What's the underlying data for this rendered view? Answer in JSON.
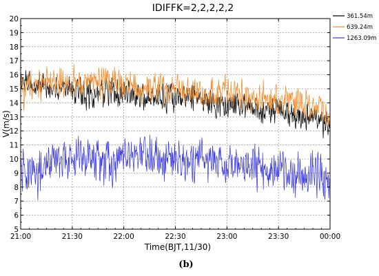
{
  "chart_data": {
    "type": "line",
    "title": "IDIFFK=2,2,2,2,2",
    "xlabel": "Time(BJT,11/30)",
    "ylabel": "V(m/s)",
    "caption": "(b)",
    "xlim": [
      0,
      180
    ],
    "ylim": [
      5,
      20
    ],
    "x_ticks": [
      0,
      30,
      60,
      90,
      120,
      150,
      180
    ],
    "x_tick_labels": [
      "21:00",
      "21:30",
      "22:00",
      "22:30",
      "23:00",
      "23:30",
      "00:00"
    ],
    "y_ticks": [
      5,
      6,
      7,
      8,
      9,
      10,
      11,
      12,
      13,
      14,
      15,
      16,
      17,
      18,
      19,
      20
    ],
    "y_tick_labels": [
      "5",
      "6",
      "7",
      "8",
      "9",
      "10",
      "11",
      "12",
      "13",
      "14",
      "15",
      "16",
      "17",
      "18",
      "19",
      "20"
    ],
    "grid": true,
    "legend_position": "top-right",
    "x": [
      0,
      10,
      20,
      30,
      40,
      50,
      60,
      70,
      80,
      90,
      100,
      110,
      120,
      130,
      140,
      150,
      160,
      170,
      180
    ],
    "series": [
      {
        "name": "361.54m",
        "color": "#000000",
        "values": [
          15.6,
          15.2,
          15.0,
          14.9,
          14.6,
          14.8,
          14.8,
          14.4,
          14.6,
          14.4,
          14.3,
          14.1,
          14.1,
          13.8,
          13.5,
          13.6,
          13.2,
          13.0,
          12.3
        ],
        "noise": 1.1
      },
      {
        "name": "639.24m",
        "color": "#F28A28",
        "values": [
          15.0,
          15.4,
          15.6,
          15.3,
          15.5,
          15.4,
          15.2,
          14.9,
          15.1,
          15.0,
          14.9,
          14.6,
          14.8,
          14.4,
          14.3,
          14.2,
          14.1,
          13.8,
          13.1
        ],
        "noise": 1.2
      },
      {
        "name": "1263.09m",
        "color": "#3A3AE0",
        "values": [
          9.2,
          9.0,
          9.8,
          10.1,
          10.0,
          9.8,
          10.0,
          10.3,
          10.1,
          9.9,
          9.8,
          10.0,
          9.6,
          9.4,
          9.5,
          9.2,
          8.8,
          9.2,
          8.4
        ],
        "noise": 1.6
      }
    ]
  }
}
